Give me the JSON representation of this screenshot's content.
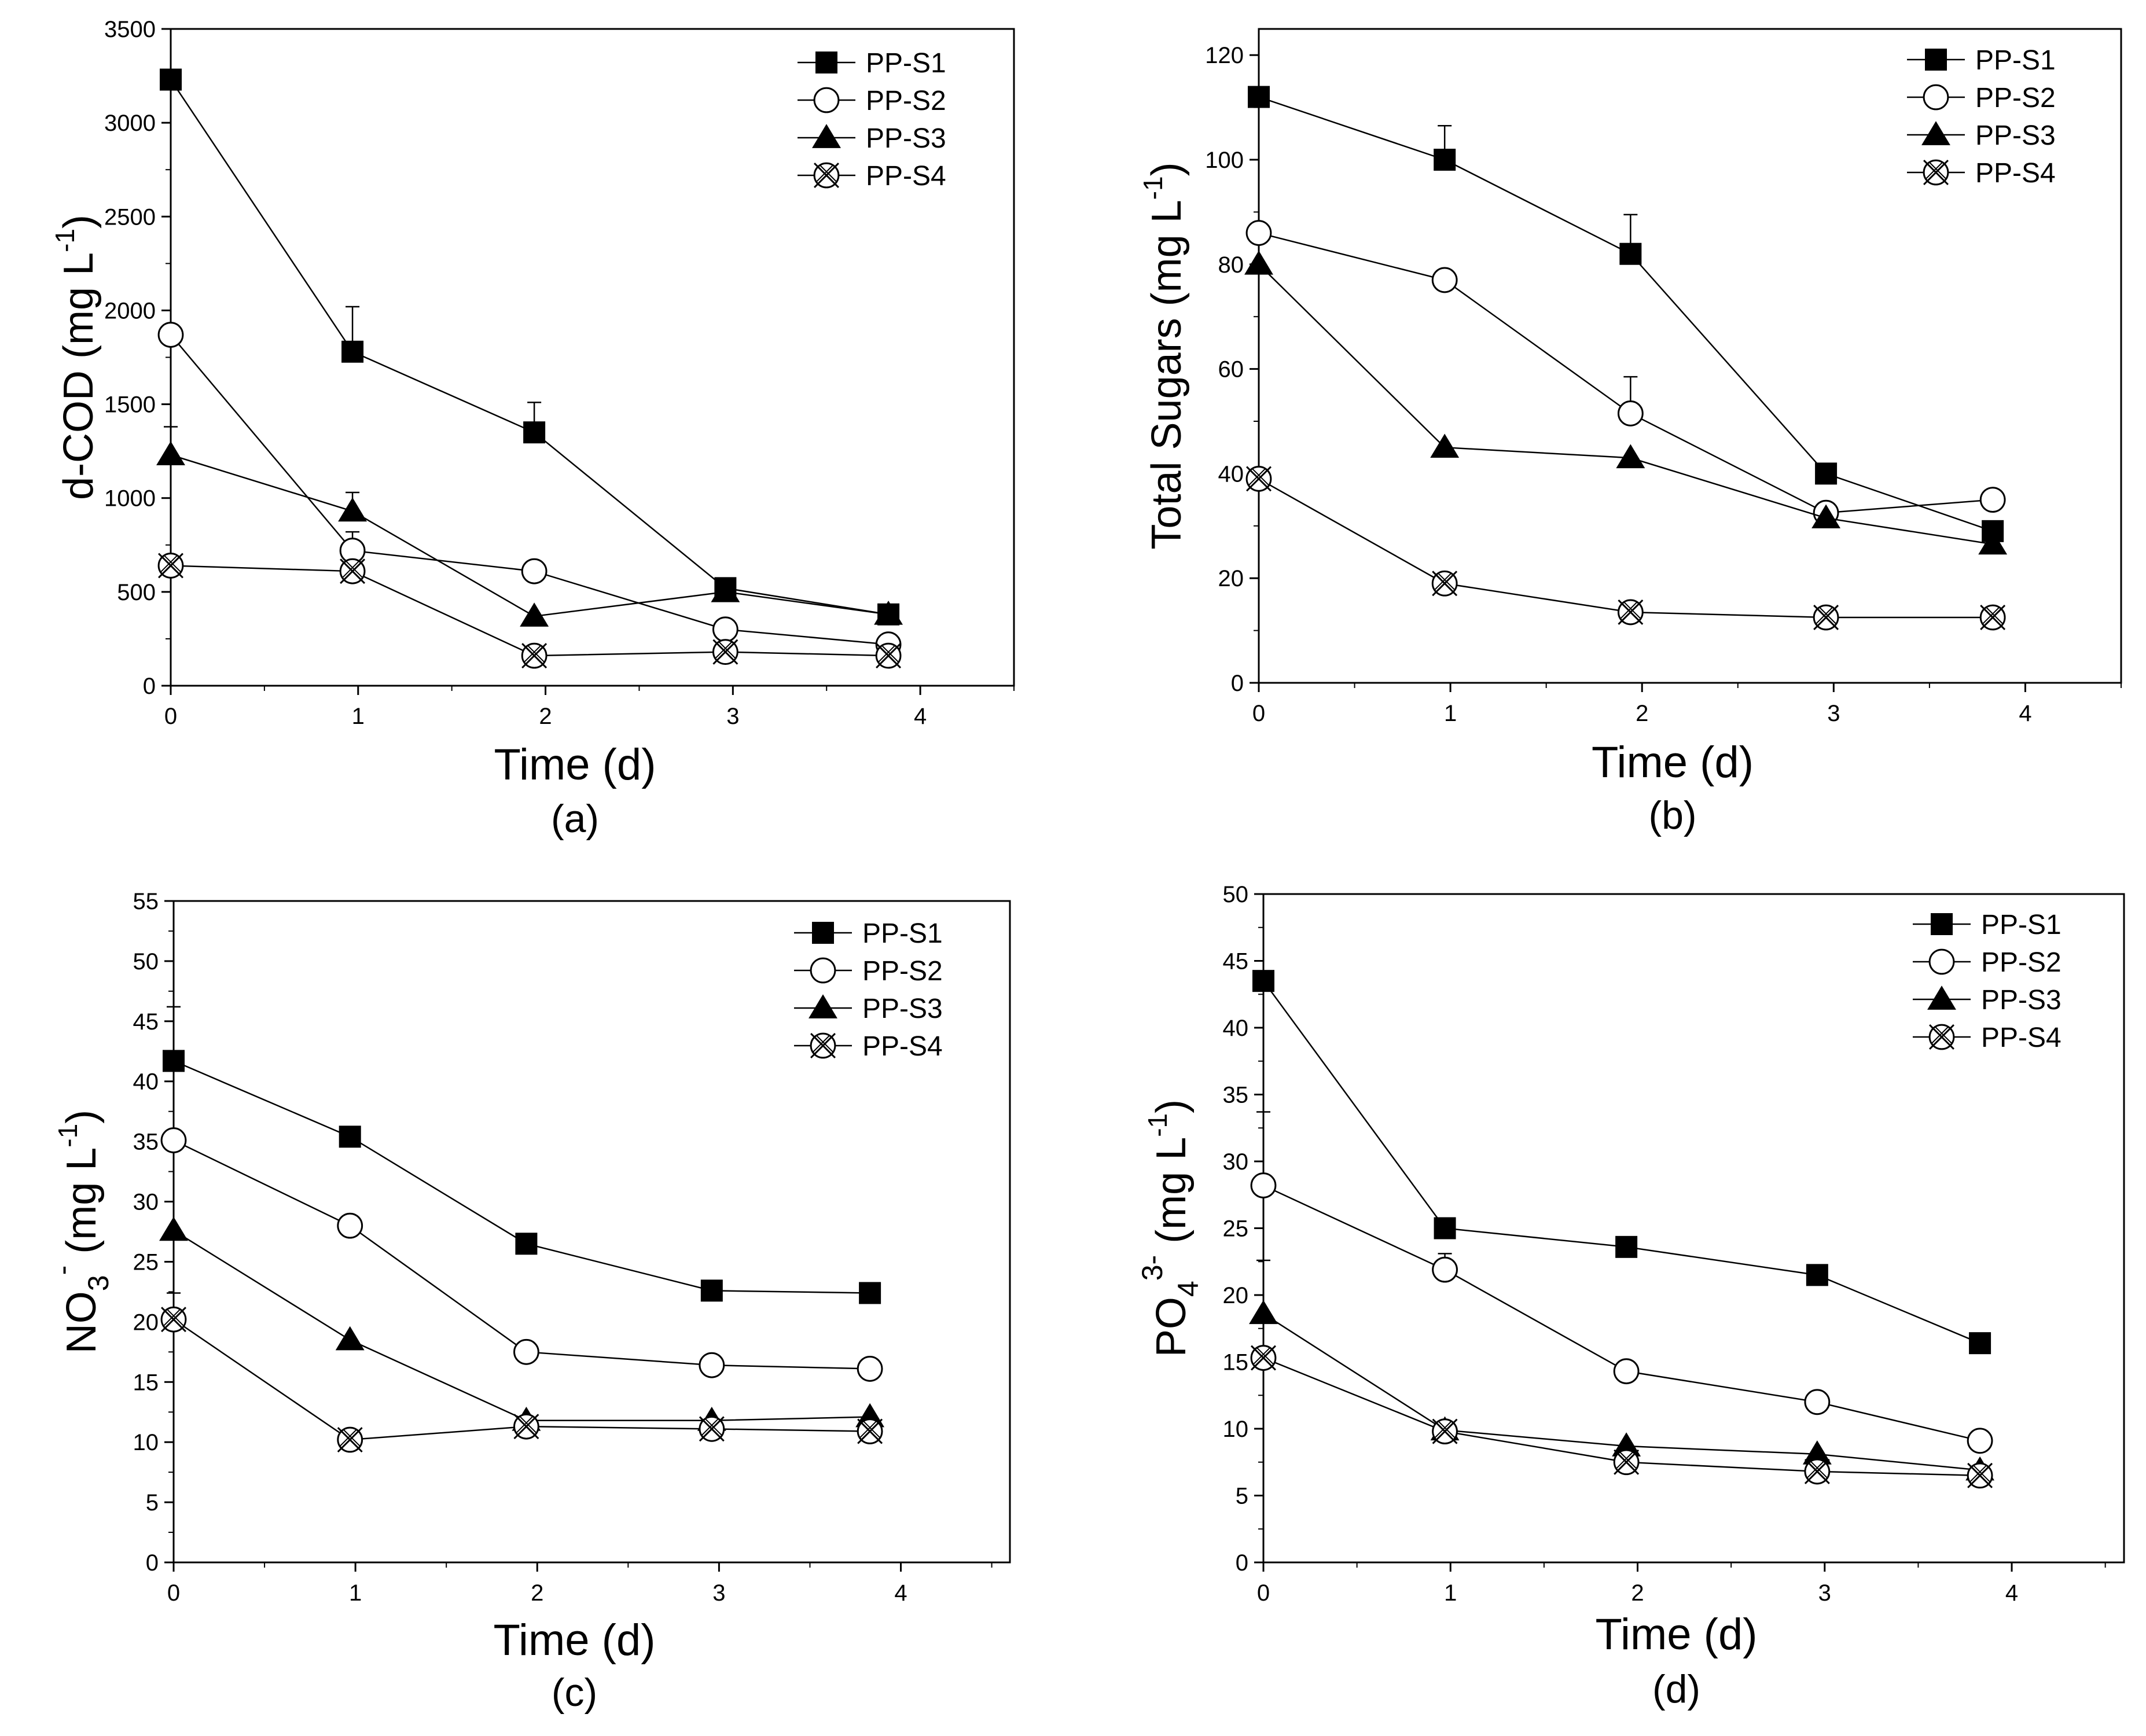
{
  "figure": {
    "legend_labels": [
      "PP-S1",
      "PP-S2",
      "PP-S3",
      "PP-S4"
    ]
  },
  "chart_data": [
    {
      "type": "line",
      "panel_label": "(a)",
      "xlabel": "Time (d)",
      "ylabel": "d-COD (mg L",
      "ylabel_sup": "-1",
      "ylabel_end": ")",
      "xlim": [
        0,
        4.5
      ],
      "ylim": [
        0,
        3500
      ],
      "xticks": [
        0,
        1,
        2,
        3,
        4
      ],
      "yticks": [
        0,
        500,
        1000,
        1500,
        2000,
        2500,
        3000,
        3500
      ],
      "legend_position": "top-right",
      "series": [
        {
          "name": "PP-S1",
          "marker": "square",
          "x": [
            0,
            0.97,
            1.94,
            2.96,
            3.83
          ],
          "y": [
            3230,
            1780,
            1350,
            520,
            380
          ],
          "err": [
            0,
            240,
            160,
            0,
            0
          ]
        },
        {
          "name": "PP-S2",
          "marker": "circle",
          "x": [
            0,
            0.97,
            1.94,
            2.96,
            3.83
          ],
          "y": [
            1870,
            720,
            610,
            300,
            220
          ],
          "err": [
            0,
            100,
            0,
            0,
            0
          ]
        },
        {
          "name": "PP-S3",
          "marker": "triangle",
          "x": [
            0,
            0.97,
            1.94,
            2.96,
            3.83
          ],
          "y": [
            1230,
            930,
            370,
            500,
            380
          ],
          "err": [
            150,
            100,
            0,
            0,
            0
          ]
        },
        {
          "name": "PP-S4",
          "marker": "xcircle",
          "x": [
            0,
            0.97,
            1.94,
            2.96,
            3.83
          ],
          "y": [
            640,
            610,
            160,
            180,
            160
          ],
          "err": [
            0,
            0,
            0,
            0,
            0
          ]
        }
      ]
    },
    {
      "type": "line",
      "panel_label": "(b)",
      "xlabel": "Time (d)",
      "ylabel": "Total Sugars  (mg L",
      "ylabel_sup": "-1",
      "ylabel_end": ")",
      "xlim": [
        0,
        4.5
      ],
      "ylim": [
        0,
        125
      ],
      "xticks": [
        0,
        1,
        2,
        3,
        4
      ],
      "yticks": [
        0,
        20,
        40,
        60,
        80,
        100,
        120
      ],
      "legend_position": "top-right",
      "series": [
        {
          "name": "PP-S1",
          "marker": "square",
          "x": [
            0,
            0.97,
            1.94,
            2.96,
            3.83
          ],
          "y": [
            112,
            100,
            82,
            40,
            29
          ],
          "err": [
            0,
            6.5,
            7.5,
            0,
            0
          ]
        },
        {
          "name": "PP-S2",
          "marker": "circle",
          "x": [
            0,
            0.97,
            1.94,
            2.96,
            3.83
          ],
          "y": [
            86,
            77,
            51.5,
            32.5,
            35
          ],
          "err": [
            0,
            0,
            7,
            0,
            0
          ]
        },
        {
          "name": "PP-S3",
          "marker": "triangle",
          "x": [
            0,
            0.97,
            1.94,
            2.96,
            3.83
          ],
          "y": [
            80,
            45,
            43,
            31.5,
            26.5
          ],
          "err": [
            0,
            0,
            0,
            0,
            0
          ]
        },
        {
          "name": "PP-S4",
          "marker": "xcircle",
          "x": [
            0,
            0.97,
            1.94,
            2.96,
            3.83
          ],
          "y": [
            39,
            19,
            13.5,
            12.5,
            12.5
          ],
          "err": [
            0,
            0,
            0,
            0,
            0
          ]
        }
      ]
    },
    {
      "type": "line",
      "panel_label": "(c)",
      "xlabel": "Time (d)",
      "ylabel": "NO",
      "ylabel_sub": "3",
      "ylabel_sup": "-",
      "ylabel_mid": " (mg L",
      "ylabel_sup2": "-1",
      "ylabel_end": ")",
      "xlim": [
        0,
        4.6
      ],
      "ylim": [
        0,
        55
      ],
      "xticks": [
        0,
        1,
        2,
        3,
        4
      ],
      "yticks": [
        0,
        5,
        10,
        15,
        20,
        25,
        30,
        35,
        40,
        45,
        50,
        55
      ],
      "legend_position": "top-right",
      "series": [
        {
          "name": "PP-S1",
          "marker": "square",
          "x": [
            0,
            0.97,
            1.94,
            2.96,
            3.83
          ],
          "y": [
            41.7,
            35.4,
            26.5,
            22.6,
            22.4
          ],
          "err": [
            4.5,
            0,
            0,
            0,
            0
          ]
        },
        {
          "name": "PP-S2",
          "marker": "circle",
          "x": [
            0,
            0.97,
            1.94,
            2.96,
            3.83
          ],
          "y": [
            35.1,
            28,
            17.5,
            16.4,
            16.1
          ],
          "err": [
            0,
            0,
            0,
            0,
            0
          ]
        },
        {
          "name": "PP-S3",
          "marker": "triangle",
          "x": [
            0,
            0.97,
            1.94,
            2.96,
            3.83
          ],
          "y": [
            27.6,
            18.5,
            11.8,
            11.8,
            12.1
          ],
          "err": [
            0,
            0,
            0,
            0,
            0
          ]
        },
        {
          "name": "PP-S4",
          "marker": "xcircle",
          "x": [
            0,
            0.97,
            1.94,
            2.96,
            3.83
          ],
          "y": [
            20.2,
            10.2,
            11.3,
            11.1,
            10.9
          ],
          "err": [
            2.2,
            0,
            0,
            0,
            0
          ]
        }
      ]
    },
    {
      "type": "line",
      "panel_label": "(d)",
      "xlabel": "Time (d)",
      "ylabel": "PO",
      "ylabel_sub": "4",
      "ylabel_sup": "3-",
      "ylabel_mid": " (mg L",
      "ylabel_sup2": "-1",
      "ylabel_end": ")",
      "xlim": [
        0,
        4.6
      ],
      "ylim": [
        0,
        50
      ],
      "xticks": [
        0,
        1,
        2,
        3,
        4
      ],
      "yticks": [
        0,
        5,
        10,
        15,
        20,
        25,
        30,
        35,
        40,
        45,
        50
      ],
      "legend_position": "top-right",
      "series": [
        {
          "name": "PP-S1",
          "marker": "square",
          "x": [
            0,
            0.97,
            1.94,
            2.96,
            3.83
          ],
          "y": [
            43.5,
            25,
            23.6,
            21.5,
            16.4
          ],
          "err": [
            0,
            0,
            0,
            0,
            0
          ]
        },
        {
          "name": "PP-S2",
          "marker": "circle",
          "x": [
            0,
            0.97,
            1.94,
            2.96,
            3.83
          ],
          "y": [
            28.2,
            21.9,
            14.3,
            12,
            9.1
          ],
          "err": [
            5.5,
            1.2,
            0,
            0,
            0
          ]
        },
        {
          "name": "PP-S3",
          "marker": "triangle",
          "x": [
            0,
            0.97,
            1.94,
            2.96,
            3.83
          ],
          "y": [
            18.6,
            9.9,
            8.7,
            8.1,
            6.9
          ],
          "err": [
            4,
            0,
            0,
            0,
            0
          ]
        },
        {
          "name": "PP-S4",
          "marker": "xcircle",
          "x": [
            0,
            0.97,
            1.94,
            2.96,
            3.83
          ],
          "y": [
            15.3,
            9.8,
            7.5,
            6.8,
            6.5
          ],
          "err": [
            0,
            0,
            0,
            0,
            0
          ]
        }
      ]
    }
  ]
}
